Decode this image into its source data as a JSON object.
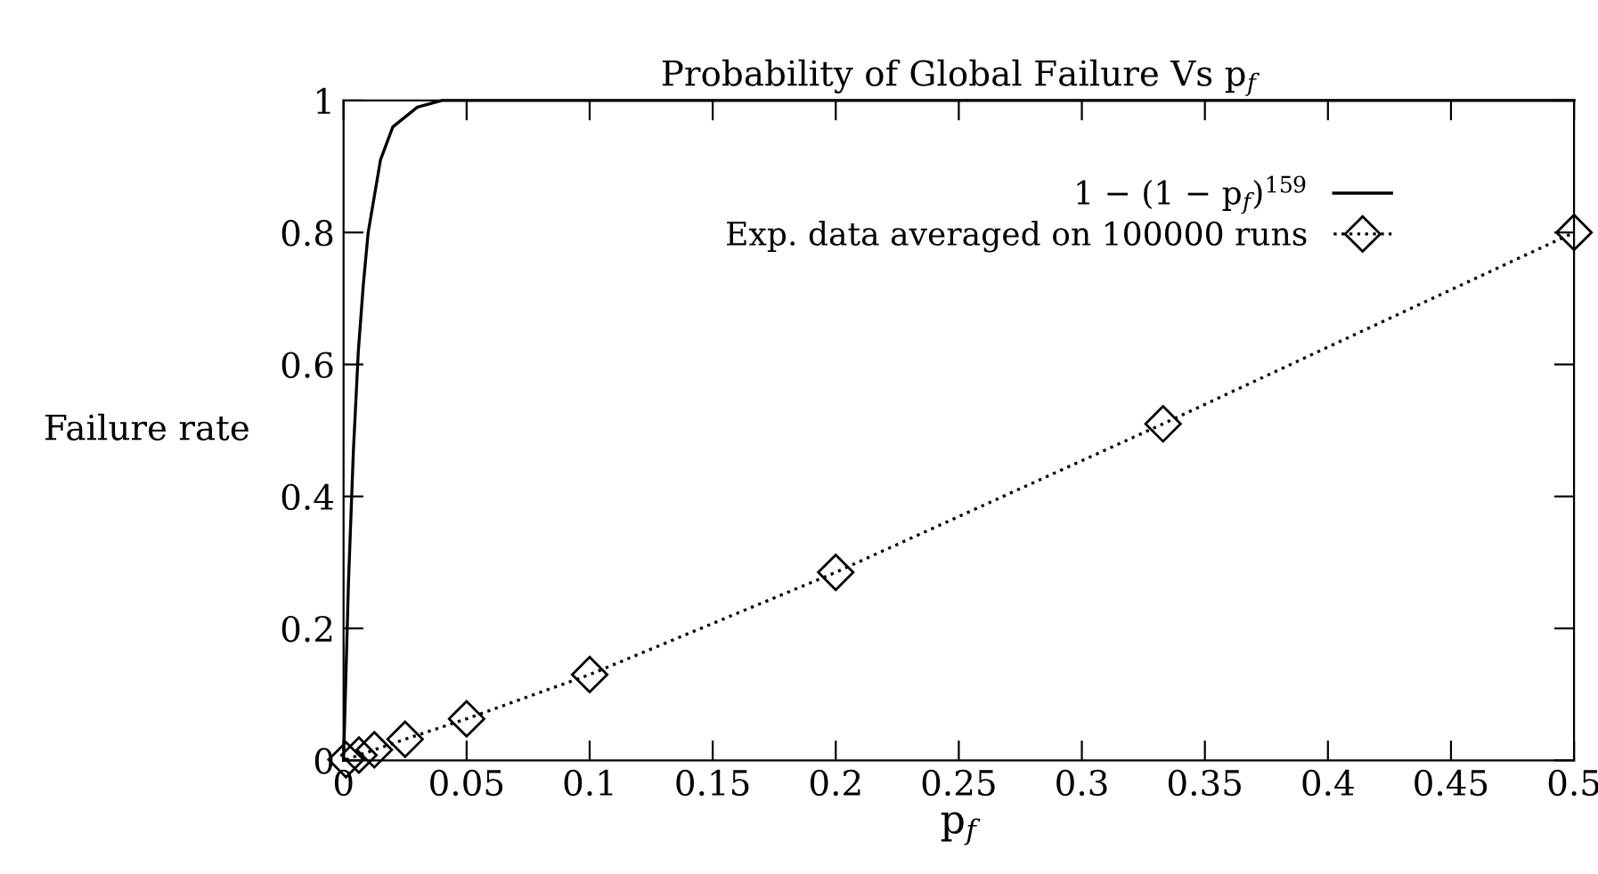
{
  "chart_data": {
    "type": "line",
    "title": "Probability of Global Failure Vs p$_{f}$",
    "xlabel": "p$_{f}$",
    "ylabel": "Failure rate",
    "xlim": [
      0,
      0.5
    ],
    "ylim": [
      0,
      1
    ],
    "xticks": [
      0,
      0.05,
      0.1,
      0.15,
      0.2,
      0.25,
      0.3,
      0.35,
      0.4,
      0.45,
      0.5
    ],
    "yticks": [
      0,
      0.2,
      0.4,
      0.6,
      0.8,
      1
    ],
    "grid": false,
    "legend": "top right",
    "series": [
      {
        "name": "1 − (1 − p$_{f}$)$^{159}$",
        "color": "#000000",
        "marker": "none",
        "line_style": "solid",
        "x": [
          0,
          0.002,
          0.004,
          0.006,
          0.008,
          0.01,
          0.015,
          0.02,
          0.03,
          0.04,
          0.5
        ],
        "values": [
          0,
          0.27,
          0.47,
          0.62,
          0.72,
          0.8,
          0.91,
          0.96,
          0.99,
          1,
          1
        ]
      },
      {
        "name": "Exp. data averaged on 100000 runs",
        "color": "#000000",
        "marker": "diamond",
        "line_style": "dotted",
        "x": [
          0.001,
          0.00625,
          0.0125,
          0.025,
          0.05,
          0.1,
          0.2,
          0.333,
          0.5
        ],
        "values": [
          0.001,
          0.008,
          0.016,
          0.032,
          0.063,
          0.13,
          0.285,
          0.51,
          0.8
        ]
      }
    ]
  }
}
